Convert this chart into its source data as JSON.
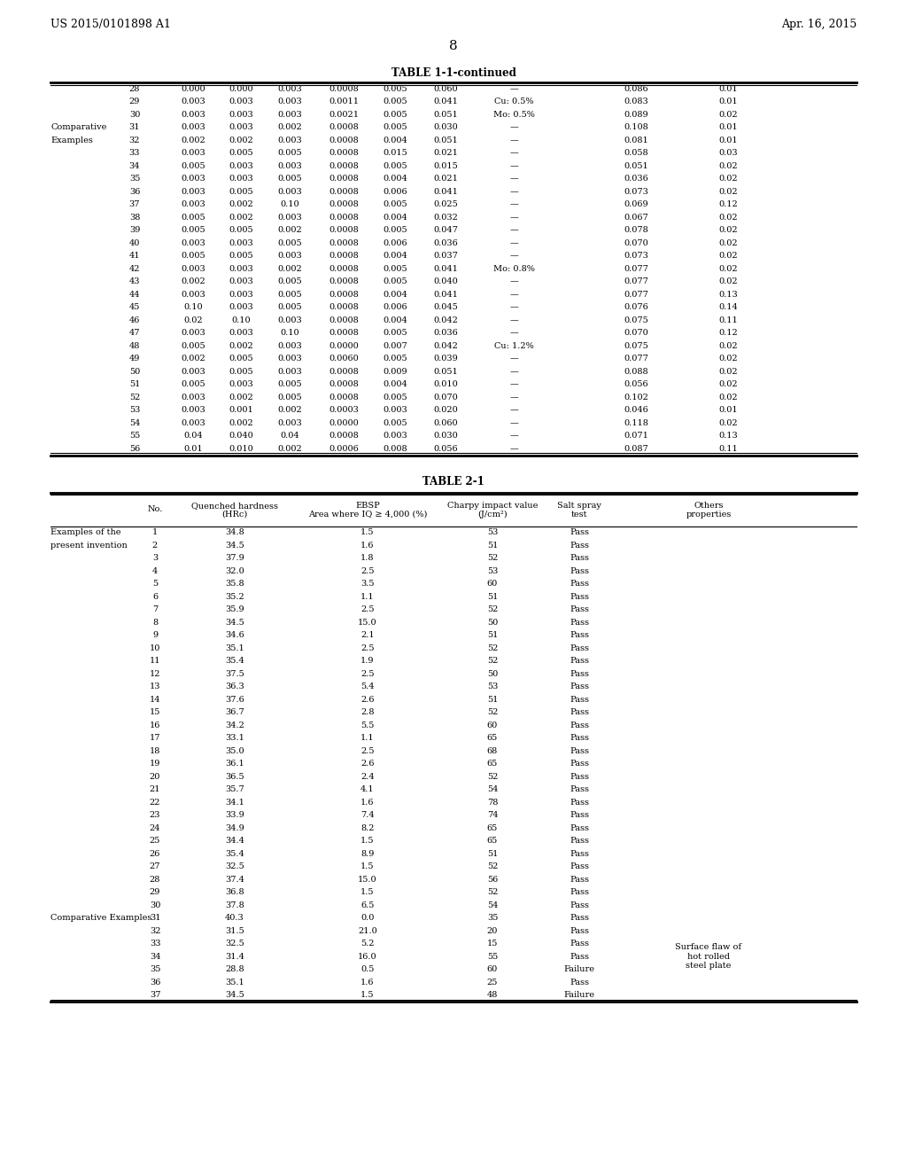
{
  "header_left": "US 2015/0101898 A1",
  "header_right": "Apr. 16, 2015",
  "page_number": "8",
  "table1_title": "TABLE 1-1-continued",
  "table1_rows": [
    [
      "",
      "28",
      "0.000",
      "0.000",
      "0.003",
      "0.0008",
      "0.005",
      "0.060",
      "—",
      "0.086",
      "0.01"
    ],
    [
      "",
      "29",
      "0.003",
      "0.003",
      "0.003",
      "0.0011",
      "0.005",
      "0.041",
      "Cu: 0.5%",
      "0.083",
      "0.01"
    ],
    [
      "",
      "30",
      "0.003",
      "0.003",
      "0.003",
      "0.0021",
      "0.005",
      "0.051",
      "Mo: 0.5%",
      "0.089",
      "0.02"
    ],
    [
      "Comparative",
      "31",
      "0.003",
      "0.003",
      "0.002",
      "0.0008",
      "0.005",
      "0.030",
      "—",
      "0.108",
      "0.01"
    ],
    [
      "Examples",
      "32",
      "0.002",
      "0.002",
      "0.003",
      "0.0008",
      "0.004",
      "0.051",
      "—",
      "0.081",
      "0.01"
    ],
    [
      "",
      "33",
      "0.003",
      "0.005",
      "0.005",
      "0.0008",
      "0.015",
      "0.021",
      "—",
      "0.058",
      "0.03"
    ],
    [
      "",
      "34",
      "0.005",
      "0.003",
      "0.003",
      "0.0008",
      "0.005",
      "0.015",
      "—",
      "0.051",
      "0.02"
    ],
    [
      "",
      "35",
      "0.003",
      "0.003",
      "0.005",
      "0.0008",
      "0.004",
      "0.021",
      "—",
      "0.036",
      "0.02"
    ],
    [
      "",
      "36",
      "0.003",
      "0.005",
      "0.003",
      "0.0008",
      "0.006",
      "0.041",
      "—",
      "0.073",
      "0.02"
    ],
    [
      "",
      "37",
      "0.003",
      "0.002",
      "0.10",
      "0.0008",
      "0.005",
      "0.025",
      "—",
      "0.069",
      "0.12"
    ],
    [
      "",
      "38",
      "0.005",
      "0.002",
      "0.003",
      "0.0008",
      "0.004",
      "0.032",
      "—",
      "0.067",
      "0.02"
    ],
    [
      "",
      "39",
      "0.005",
      "0.005",
      "0.002",
      "0.0008",
      "0.005",
      "0.047",
      "—",
      "0.078",
      "0.02"
    ],
    [
      "",
      "40",
      "0.003",
      "0.003",
      "0.005",
      "0.0008",
      "0.006",
      "0.036",
      "—",
      "0.070",
      "0.02"
    ],
    [
      "",
      "41",
      "0.005",
      "0.005",
      "0.003",
      "0.0008",
      "0.004",
      "0.037",
      "—",
      "0.073",
      "0.02"
    ],
    [
      "",
      "42",
      "0.003",
      "0.003",
      "0.002",
      "0.0008",
      "0.005",
      "0.041",
      "Mo: 0.8%",
      "0.077",
      "0.02"
    ],
    [
      "",
      "43",
      "0.002",
      "0.003",
      "0.005",
      "0.0008",
      "0.005",
      "0.040",
      "—",
      "0.077",
      "0.02"
    ],
    [
      "",
      "44",
      "0.003",
      "0.003",
      "0.005",
      "0.0008",
      "0.004",
      "0.041",
      "—",
      "0.077",
      "0.13"
    ],
    [
      "",
      "45",
      "0.10",
      "0.003",
      "0.005",
      "0.0008",
      "0.006",
      "0.045",
      "—",
      "0.076",
      "0.14"
    ],
    [
      "",
      "46",
      "0.02",
      "0.10",
      "0.003",
      "0.0008",
      "0.004",
      "0.042",
      "—",
      "0.075",
      "0.11"
    ],
    [
      "",
      "47",
      "0.003",
      "0.003",
      "0.10",
      "0.0008",
      "0.005",
      "0.036",
      "—",
      "0.070",
      "0.12"
    ],
    [
      "",
      "48",
      "0.005",
      "0.002",
      "0.003",
      "0.0000",
      "0.007",
      "0.042",
      "Cu: 1.2%",
      "0.075",
      "0.02"
    ],
    [
      "",
      "49",
      "0.002",
      "0.005",
      "0.003",
      "0.0060",
      "0.005",
      "0.039",
      "—",
      "0.077",
      "0.02"
    ],
    [
      "",
      "50",
      "0.003",
      "0.005",
      "0.003",
      "0.0008",
      "0.009",
      "0.051",
      "—",
      "0.088",
      "0.02"
    ],
    [
      "",
      "51",
      "0.005",
      "0.003",
      "0.005",
      "0.0008",
      "0.004",
      "0.010",
      "—",
      "0.056",
      "0.02"
    ],
    [
      "",
      "52",
      "0.003",
      "0.002",
      "0.005",
      "0.0008",
      "0.005",
      "0.070",
      "—",
      "0.102",
      "0.02"
    ],
    [
      "",
      "53",
      "0.003",
      "0.001",
      "0.002",
      "0.0003",
      "0.003",
      "0.020",
      "—",
      "0.046",
      "0.01"
    ],
    [
      "",
      "54",
      "0.003",
      "0.002",
      "0.003",
      "0.0000",
      "0.005",
      "0.060",
      "—",
      "0.118",
      "0.02"
    ],
    [
      "",
      "55",
      "0.04",
      "0.040",
      "0.04",
      "0.0008",
      "0.003",
      "0.030",
      "—",
      "0.071",
      "0.13"
    ],
    [
      "",
      "56",
      "0.01",
      "0.010",
      "0.002",
      "0.0006",
      "0.008",
      "0.056",
      "—",
      "0.087",
      "0.11"
    ]
  ],
  "table2_title": "TABLE 2-1",
  "table2_rows": [
    [
      "Examples of the",
      "1",
      "34.8",
      "1.5",
      "53",
      "Pass",
      ""
    ],
    [
      "present invention",
      "2",
      "34.5",
      "1.6",
      "51",
      "Pass",
      ""
    ],
    [
      "",
      "3",
      "37.9",
      "1.8",
      "52",
      "Pass",
      ""
    ],
    [
      "",
      "4",
      "32.0",
      "2.5",
      "53",
      "Pass",
      ""
    ],
    [
      "",
      "5",
      "35.8",
      "3.5",
      "60",
      "Pass",
      ""
    ],
    [
      "",
      "6",
      "35.2",
      "1.1",
      "51",
      "Pass",
      ""
    ],
    [
      "",
      "7",
      "35.9",
      "2.5",
      "52",
      "Pass",
      ""
    ],
    [
      "",
      "8",
      "34.5",
      "15.0",
      "50",
      "Pass",
      ""
    ],
    [
      "",
      "9",
      "34.6",
      "2.1",
      "51",
      "Pass",
      ""
    ],
    [
      "",
      "10",
      "35.1",
      "2.5",
      "52",
      "Pass",
      ""
    ],
    [
      "",
      "11",
      "35.4",
      "1.9",
      "52",
      "Pass",
      ""
    ],
    [
      "",
      "12",
      "37.5",
      "2.5",
      "50",
      "Pass",
      ""
    ],
    [
      "",
      "13",
      "36.3",
      "5.4",
      "53",
      "Pass",
      ""
    ],
    [
      "",
      "14",
      "37.6",
      "2.6",
      "51",
      "Pass",
      ""
    ],
    [
      "",
      "15",
      "36.7",
      "2.8",
      "52",
      "Pass",
      ""
    ],
    [
      "",
      "16",
      "34.2",
      "5.5",
      "60",
      "Pass",
      ""
    ],
    [
      "",
      "17",
      "33.1",
      "1.1",
      "65",
      "Pass",
      ""
    ],
    [
      "",
      "18",
      "35.0",
      "2.5",
      "68",
      "Pass",
      ""
    ],
    [
      "",
      "19",
      "36.1",
      "2.6",
      "65",
      "Pass",
      ""
    ],
    [
      "",
      "20",
      "36.5",
      "2.4",
      "52",
      "Pass",
      ""
    ],
    [
      "",
      "21",
      "35.7",
      "4.1",
      "54",
      "Pass",
      ""
    ],
    [
      "",
      "22",
      "34.1",
      "1.6",
      "78",
      "Pass",
      ""
    ],
    [
      "",
      "23",
      "33.9",
      "7.4",
      "74",
      "Pass",
      ""
    ],
    [
      "",
      "24",
      "34.9",
      "8.2",
      "65",
      "Pass",
      ""
    ],
    [
      "",
      "25",
      "34.4",
      "1.5",
      "65",
      "Pass",
      ""
    ],
    [
      "",
      "26",
      "35.4",
      "8.9",
      "51",
      "Pass",
      ""
    ],
    [
      "",
      "27",
      "32.5",
      "1.5",
      "52",
      "Pass",
      ""
    ],
    [
      "",
      "28",
      "37.4",
      "15.0",
      "56",
      "Pass",
      ""
    ],
    [
      "",
      "29",
      "36.8",
      "1.5",
      "52",
      "Pass",
      ""
    ],
    [
      "",
      "30",
      "37.8",
      "6.5",
      "54",
      "Pass",
      ""
    ],
    [
      "Comparative Examples",
      "31",
      "40.3",
      "0.0",
      "35",
      "Pass",
      ""
    ],
    [
      "",
      "32",
      "31.5",
      "21.0",
      "20",
      "Pass",
      ""
    ],
    [
      "",
      "33",
      "32.5",
      "5.2",
      "15",
      "Pass",
      ""
    ],
    [
      "",
      "34",
      "31.4",
      "16.0",
      "55",
      "Pass",
      "Surface flaw of\nhot rolled\nsteel plate"
    ],
    [
      "",
      "35",
      "28.8",
      "0.5",
      "60",
      "Failure",
      ""
    ],
    [
      "",
      "36",
      "35.1",
      "1.6",
      "25",
      "Pass",
      ""
    ],
    [
      "",
      "37",
      "34.5",
      "1.5",
      "48",
      "Failure",
      ""
    ]
  ],
  "bg_color": "#ffffff",
  "text_color": "#000000",
  "font_size": 7.0,
  "title_font_size": 8.5
}
